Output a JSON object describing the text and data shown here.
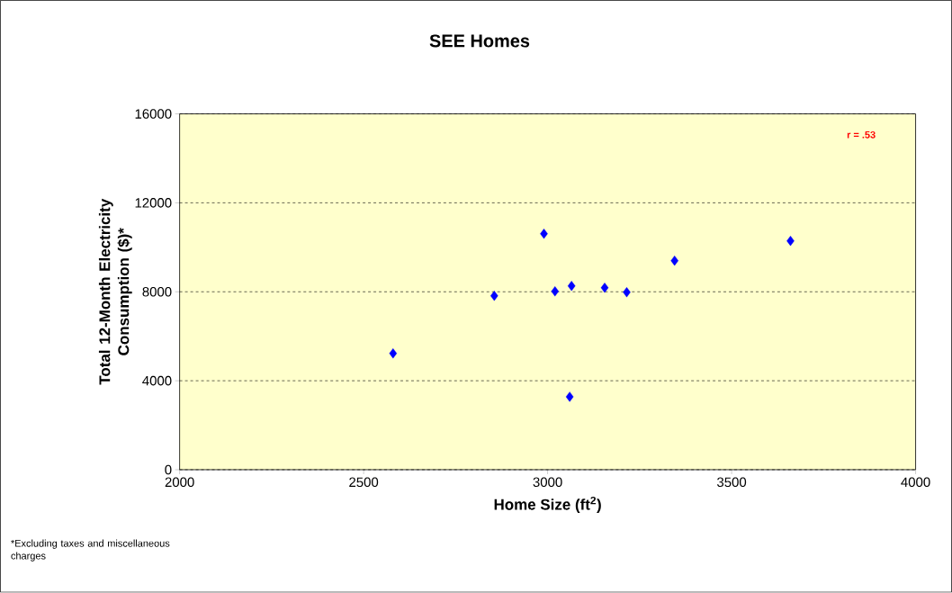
{
  "chart_data": {
    "type": "scatter",
    "title": "SEE Homes",
    "xlabel": "Home Size (ft$^{2}$)",
    "ylabel": "Total 12-Month Electricity Consumption ($)*",
    "x": [
      2580,
      2855,
      2990,
      3020,
      3065,
      3060,
      3155,
      3215,
      3345,
      3660
    ],
    "values": [
      5230,
      7820,
      10610,
      8020,
      8260,
      3280,
      8180,
      7980,
      9400,
      10290
    ],
    "color": "#0000ff",
    "marker": "diamond",
    "xlim": [
      2000,
      4000
    ],
    "xticks": [
      2000,
      2500,
      3000,
      3500,
      4000
    ],
    "ylim": [
      0,
      16000
    ],
    "yticks": [
      0,
      4000,
      8000,
      12000,
      16000
    ],
    "grid": "y",
    "annotations": [
      "r = .53",
      "*Excluding taxes and miscellaneous charges"
    ]
  }
}
